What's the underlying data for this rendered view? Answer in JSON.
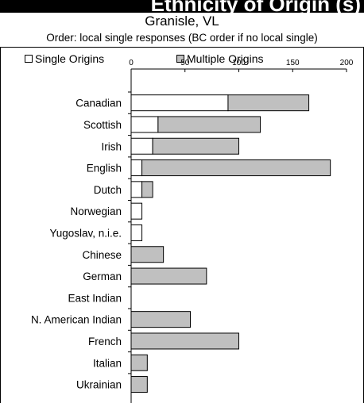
{
  "header": {
    "title": "Ethnicity of Origin (s)",
    "subtitle": "Granisle, VL",
    "caption": "Order: local single responses (BC order if no local single)"
  },
  "colors": {
    "single": "#ffffff",
    "multiple": "#c0c0c0",
    "stroke": "#000000"
  },
  "chart_data": {
    "type": "bar",
    "orientation": "horizontal",
    "stacked": true,
    "categories": [
      "Canadian",
      "Scottish",
      "Irish",
      "English",
      "Dutch",
      "Norwegian",
      "Yugoslav, n.i.e.",
      "Chinese",
      "German",
      "East Indian",
      "N. American Indian",
      "French",
      "Italian",
      "Ukrainian"
    ],
    "series": [
      {
        "name": "Single Origins",
        "values": [
          90,
          25,
          20,
          10,
          10,
          10,
          10,
          0,
          0,
          0,
          0,
          0,
          0,
          0
        ]
      },
      {
        "name": "Multiple Origins",
        "values": [
          75,
          95,
          80,
          175,
          10,
          0,
          0,
          30,
          70,
          0,
          55,
          100,
          15,
          15
        ]
      }
    ],
    "xlim": [
      0,
      200
    ],
    "xticks": [
      0,
      50,
      100,
      150,
      200
    ],
    "legend_position": "top",
    "grid": false
  }
}
